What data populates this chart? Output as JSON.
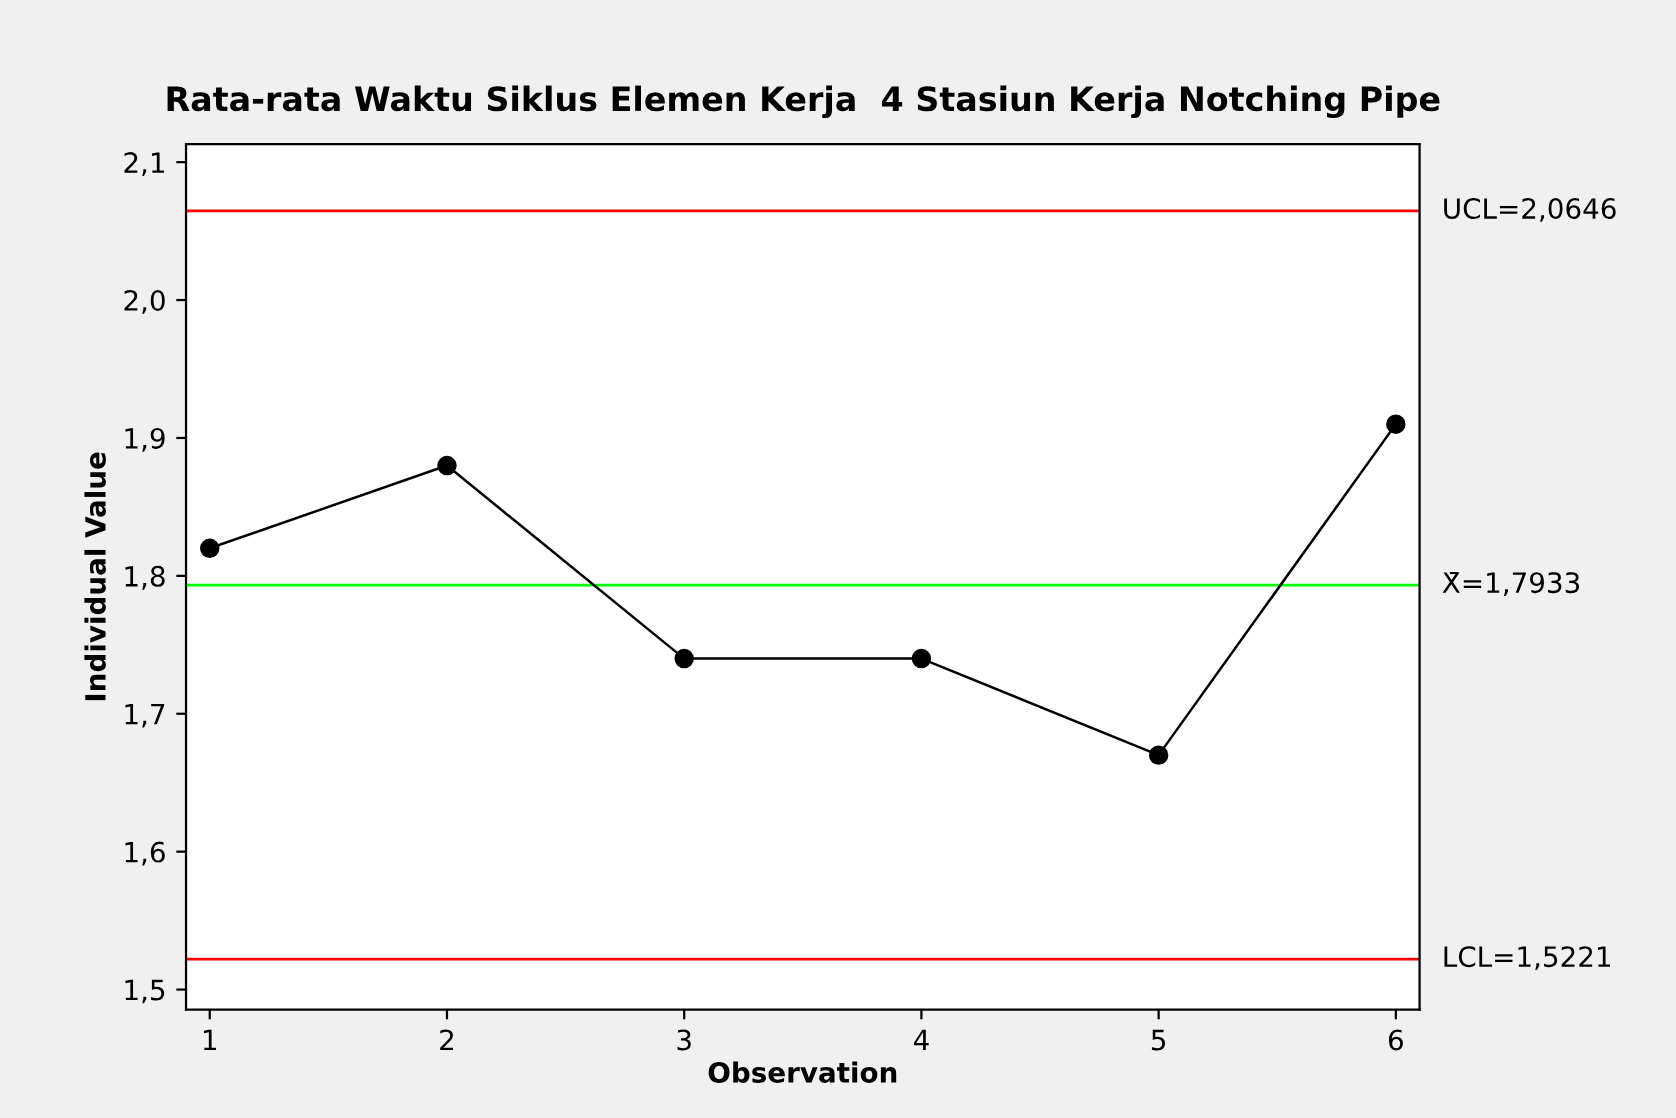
{
  "chart_data": {
    "type": "line",
    "title": "Rata-rata Waktu Siklus Elemen Kerja  4 Stasiun Kerja Notching Pipe",
    "xlabel": "Observation",
    "ylabel": "Individual Value",
    "x": [
      1,
      2,
      3,
      4,
      5,
      6
    ],
    "series": [
      {
        "color": "#000000",
        "values": [
          1.82,
          1.88,
          1.74,
          1.74,
          1.67,
          1.91
        ]
      }
    ],
    "marker": "circle",
    "line_style": "solid",
    "grid": false,
    "legend": false,
    "xlim": [
      0.9,
      6.1
    ],
    "xticks": [
      1,
      2,
      3,
      4,
      5,
      6
    ],
    "ylim": [
      1.4855,
      2.113
    ],
    "yticks": [
      {
        "value": 1.5,
        "label": "1,5"
      },
      {
        "value": 1.6,
        "label": "1,6"
      },
      {
        "value": 1.7,
        "label": "1,7"
      },
      {
        "value": 1.8,
        "label": "1,8"
      },
      {
        "value": 1.9,
        "label": "1,9"
      },
      {
        "value": 2.0,
        "label": "2,0"
      },
      {
        "value": 2.1,
        "label": "2,1"
      }
    ],
    "ref_lines": [
      {
        "axis": "y",
        "value": 2.0646,
        "label": "UCL=2,0646",
        "color": "#ff0000"
      },
      {
        "axis": "y",
        "value": 1.7933,
        "label": "X̄=1,7933",
        "color": "#00ff00"
      },
      {
        "axis": "y",
        "value": 1.5221,
        "label": "LCL=1,5221",
        "color": "#ff0000"
      }
    ]
  }
}
